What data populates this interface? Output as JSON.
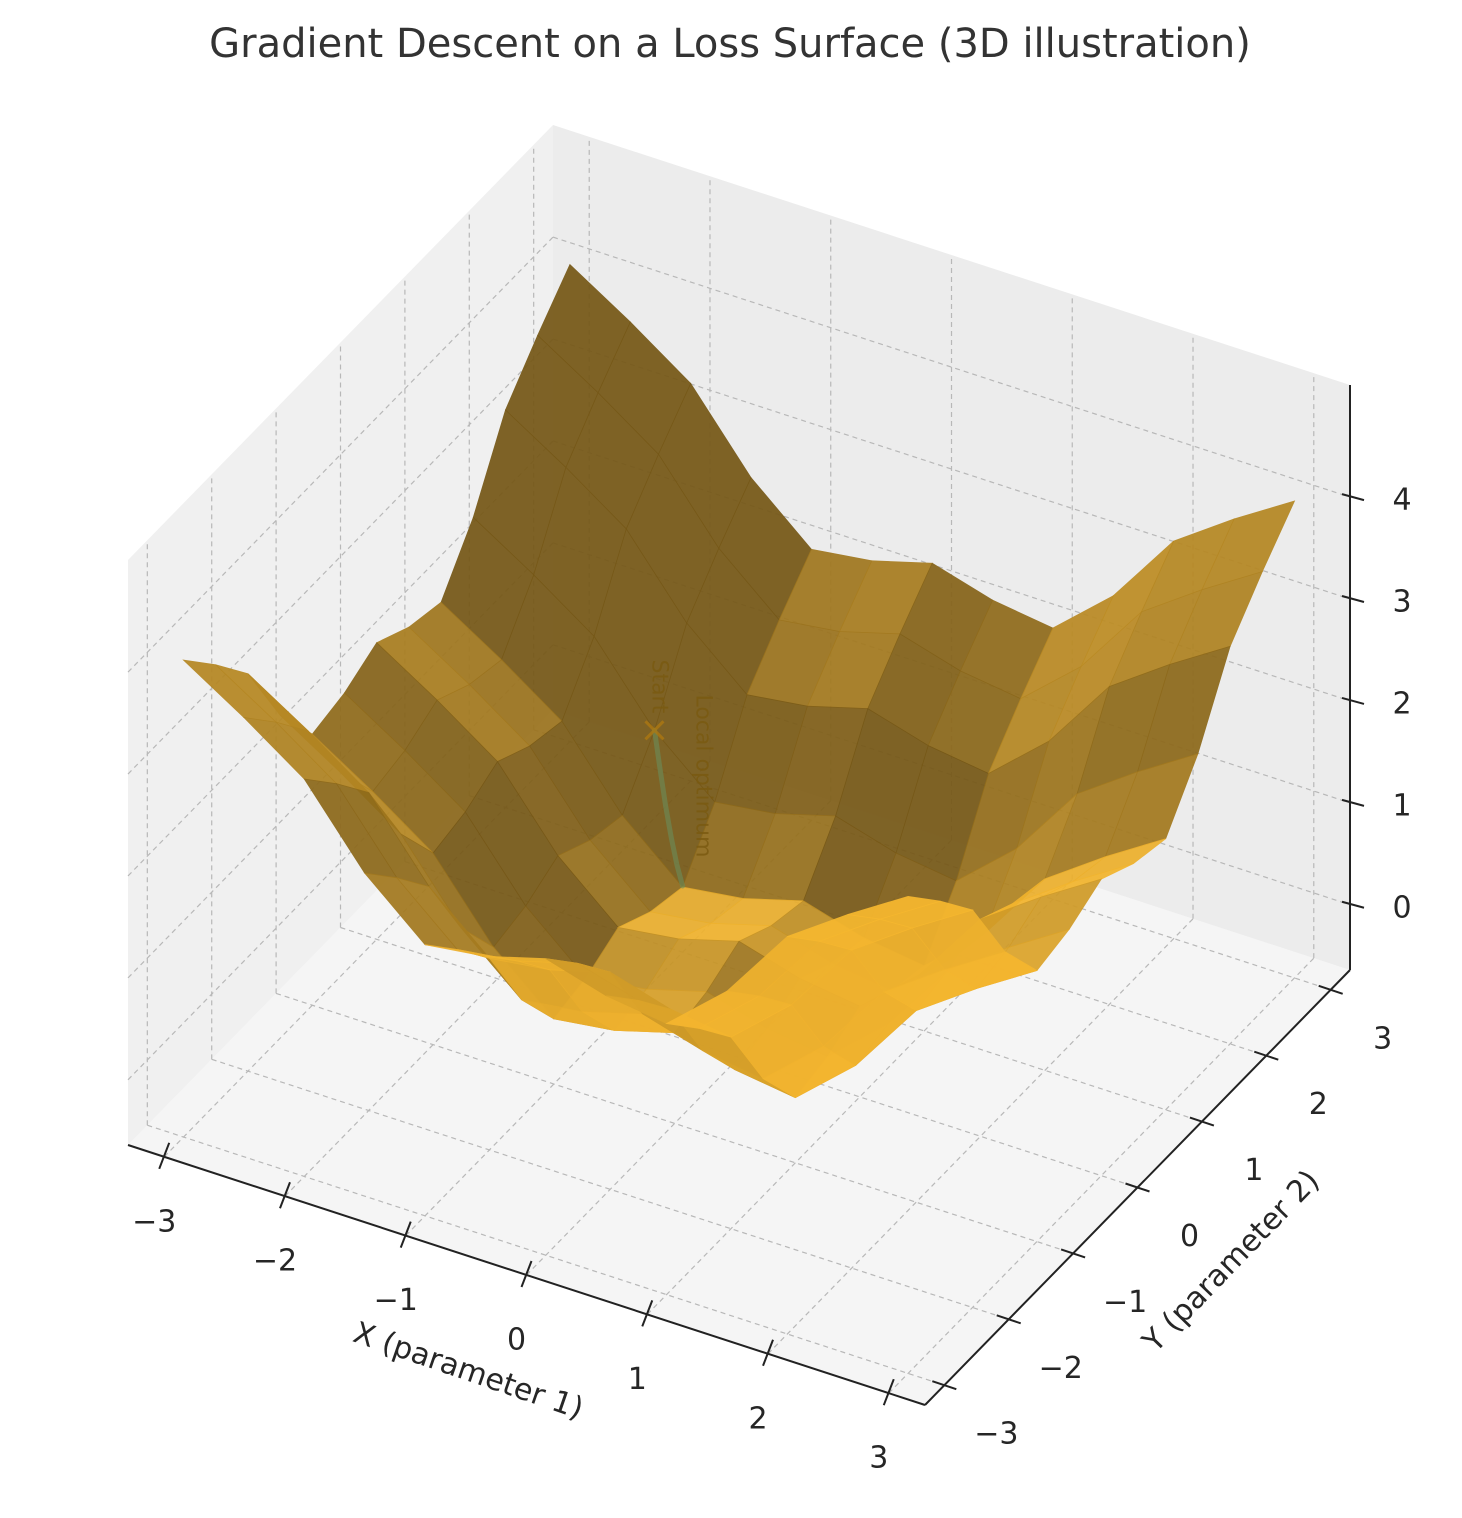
{
  "chart_data": {
    "type": "surface",
    "title": "Gradient Descent on a Loss Surface (3D illustration)",
    "xlabel": "X (parameter 1)",
    "ylabel": "Y (parameter 2)",
    "color": "#ebaf2d",
    "grid": true,
    "xlim": [
      -3.3,
      3.3
    ],
    "ylim": [
      -3.3,
      3.3
    ],
    "zlim": [
      -0.64,
      5.1
    ],
    "xticks": [
      {
        "value": -3,
        "label": "−3"
      },
      {
        "value": -2,
        "label": "−2"
      },
      {
        "value": -1,
        "label": "−1"
      },
      0,
      1,
      2,
      3
    ],
    "yticks": [
      {
        "value": -3,
        "label": "−3"
      },
      {
        "value": -2,
        "label": "−2"
      },
      {
        "value": -1,
        "label": "−1"
      },
      0,
      1,
      2,
      3
    ],
    "zticks": [
      0,
      1,
      2,
      3,
      4
    ],
    "x": [
      -3,
      -2.5,
      -2,
      -1.5,
      -1,
      -0.5,
      0,
      0.5,
      1,
      1.5,
      2,
      2.5,
      3
    ],
    "y": [
      -3,
      -2.5,
      -2,
      -1.5,
      -1,
      -0.5,
      0,
      0.5,
      1,
      1.5,
      2,
      2.5,
      3
    ],
    "z": [
      [
        4.04,
        3.67,
        3.26,
        2.53,
        2.02,
        2.1,
        2.27,
        2.1,
        2.02,
        2.53,
        3.26,
        3.67,
        4.04
      ],
      [
        3.67,
        3.3,
        2.89,
        2.16,
        1.65,
        1.73,
        1.9,
        1.73,
        1.65,
        2.16,
        2.89,
        3.3,
        3.67
      ],
      [
        3.26,
        2.89,
        2.48,
        1.75,
        1.24,
        1.32,
        1.49,
        1.32,
        1.24,
        1.75,
        2.48,
        2.89,
        3.26
      ],
      [
        2.53,
        2.16,
        1.75,
        1.02,
        0.51,
        0.59,
        0.76,
        0.59,
        0.51,
        1.02,
        1.75,
        2.16,
        2.53
      ],
      [
        2.02,
        1.65,
        1.24,
        0.51,
        0.0,
        0.08,
        0.25,
        0.08,
        0.0,
        0.51,
        1.24,
        1.65,
        2.02
      ],
      [
        2.1,
        1.73,
        1.32,
        0.59,
        0.08,
        0.16,
        0.33,
        0.16,
        0.08,
        0.59,
        1.32,
        1.73,
        2.1
      ],
      [
        2.27,
        1.9,
        1.49,
        0.76,
        0.25,
        0.33,
        0.5,
        0.33,
        0.25,
        0.76,
        1.49,
        1.9,
        2.27
      ],
      [
        2.1,
        1.73,
        1.32,
        0.59,
        0.08,
        0.16,
        0.33,
        0.16,
        0.08,
        0.59,
        1.32,
        1.73,
        2.1
      ],
      [
        2.02,
        1.65,
        1.24,
        0.51,
        0.0,
        0.08,
        0.25,
        0.08,
        0.0,
        0.51,
        1.24,
        1.65,
        2.02
      ],
      [
        2.53,
        2.16,
        1.75,
        1.02,
        0.51,
        0.59,
        0.76,
        0.59,
        0.51,
        1.02,
        1.75,
        2.16,
        2.53
      ],
      [
        3.26,
        2.89,
        2.48,
        1.75,
        1.24,
        1.32,
        1.49,
        1.32,
        1.24,
        1.75,
        2.48,
        2.89,
        3.26
      ],
      [
        3.67,
        3.3,
        2.89,
        2.16,
        1.65,
        1.73,
        1.9,
        1.73,
        1.65,
        2.16,
        2.89,
        3.3,
        3.67
      ],
      [
        4.04,
        3.67,
        3.26,
        2.53,
        2.02,
        2.1,
        2.27,
        2.1,
        2.02,
        2.53,
        3.26,
        3.67,
        4.04
      ]
    ],
    "path": {
      "color": "#6b8e5a",
      "x": [
        -1.5,
        -1.4,
        -1.3,
        -1.2,
        -1.1,
        -1.0
      ],
      "y": [
        1.5,
        1.4,
        1.3,
        1.2,
        1.1,
        1.0
      ],
      "z": [
        1.02,
        0.74,
        0.48,
        0.27,
        0.11,
        0.01
      ],
      "start_label": "Start",
      "end_label": "Local optimum"
    }
  }
}
